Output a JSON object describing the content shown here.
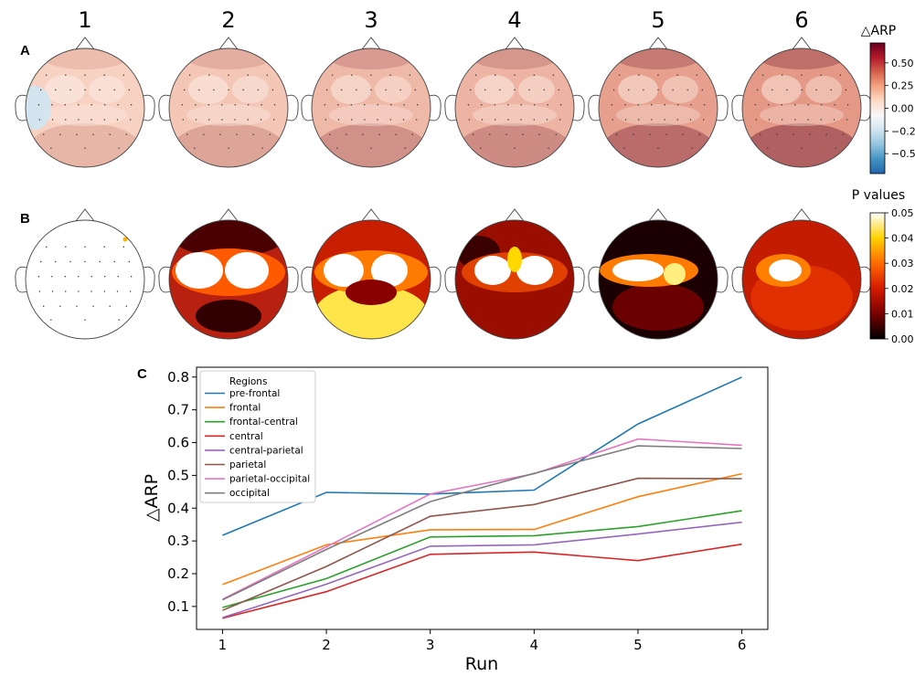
{
  "columns": [
    "1",
    "2",
    "3",
    "4",
    "5",
    "6"
  ],
  "panel_labels": {
    "a": "A",
    "b": "B",
    "c": "C"
  },
  "colorbar_a": {
    "title": "△ARP",
    "ticks": [
      "0.50",
      "0.25",
      "0.00",
      "−0.25",
      "−0.50"
    ],
    "tick_values": [
      0.5,
      0.25,
      0.0,
      -0.25,
      -0.5
    ],
    "range": [
      -0.72,
      0.72
    ],
    "colors": [
      "#2166ac",
      "#4393c3",
      "#92c5de",
      "#d1e5f0",
      "#f7f7f7",
      "#fddbc7",
      "#f4a582",
      "#d6604d",
      "#b2182b",
      "#67001f"
    ]
  },
  "colorbar_b": {
    "title": "P values",
    "ticks": [
      "0.05",
      "0.04",
      "0.03",
      "0.02",
      "0.01",
      "0.00"
    ],
    "tick_values": [
      0.05,
      0.04,
      0.03,
      0.02,
      0.01,
      0.0
    ],
    "range": [
      0,
      0.05
    ],
    "colors": [
      "#000000",
      "#7a0000",
      "#d41a00",
      "#ff6a00",
      "#ffd200",
      "#ffffff"
    ]
  },
  "topomap_a_levels": [
    0.1,
    0.2,
    0.32,
    0.36,
    0.55,
    0.62
  ],
  "chart_data": {
    "type": "line",
    "xlabel": "Run",
    "ylabel": "△ARP",
    "x": [
      1,
      2,
      3,
      4,
      5,
      6
    ],
    "xlim": [
      0.75,
      6.25
    ],
    "ylim": [
      0.03,
      0.83
    ],
    "xticks": [
      1,
      2,
      3,
      4,
      5,
      6
    ],
    "yticks": [
      0.1,
      0.2,
      0.3,
      0.4,
      0.5,
      0.6,
      0.7,
      0.8
    ],
    "legend_title": "Regions",
    "legend_position": "top-left",
    "series": [
      {
        "name": "pre-frontal",
        "color": "#1f77b4",
        "values": [
          0.317,
          0.448,
          0.443,
          0.455,
          0.657,
          0.8
        ]
      },
      {
        "name": "frontal",
        "color": "#ff7f0e",
        "values": [
          0.167,
          0.288,
          0.334,
          0.335,
          0.435,
          0.505
        ]
      },
      {
        "name": "frontal-central",
        "color": "#2ca02c",
        "values": [
          0.097,
          0.185,
          0.312,
          0.316,
          0.344,
          0.392
        ]
      },
      {
        "name": "central",
        "color": "#d62728",
        "values": [
          0.064,
          0.145,
          0.259,
          0.266,
          0.24,
          0.29
        ]
      },
      {
        "name": "central-parietal",
        "color": "#9467bd",
        "values": [
          0.066,
          0.168,
          0.284,
          0.288,
          0.321,
          0.357
        ]
      },
      {
        "name": "parietal",
        "color": "#8c564b",
        "values": [
          0.088,
          0.222,
          0.375,
          0.411,
          0.491,
          0.49
        ]
      },
      {
        "name": "parietal-occipital",
        "color": "#e377c2",
        "values": [
          0.122,
          0.282,
          0.443,
          0.505,
          0.611,
          0.592
        ]
      },
      {
        "name": "occipital",
        "color": "#7f7f7f",
        "values": [
          0.12,
          0.274,
          0.42,
          0.506,
          0.59,
          0.582
        ]
      }
    ]
  }
}
